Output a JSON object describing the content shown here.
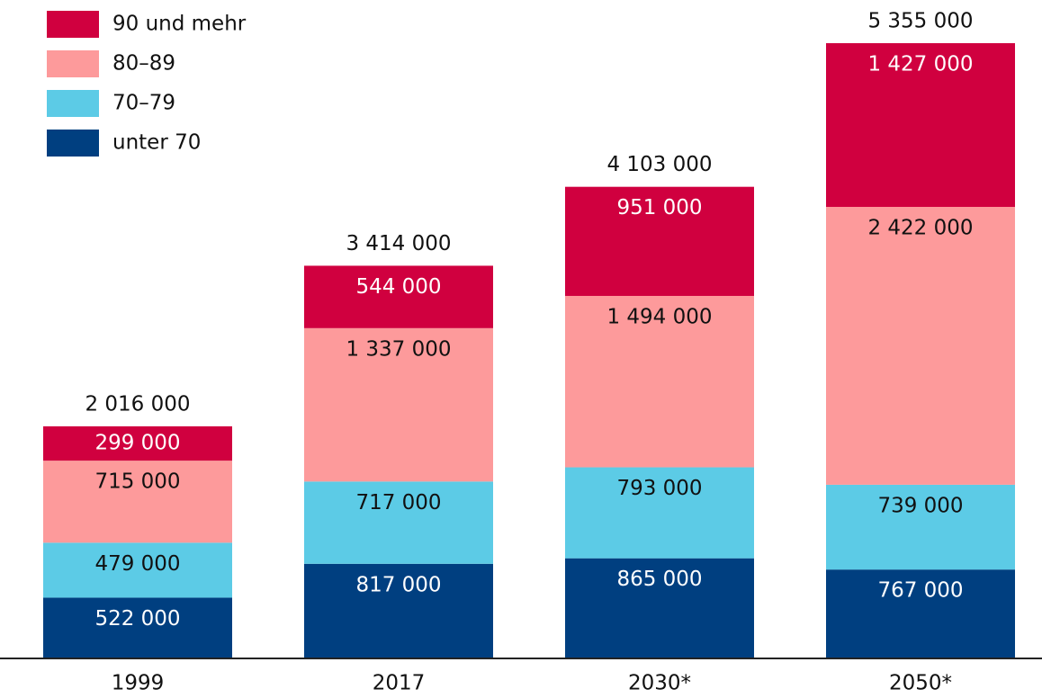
{
  "chart_data": {
    "type": "stacked_bar",
    "categories": [
      "1999",
      "2017",
      "2030*",
      "2050*"
    ],
    "series": [
      {
        "name": "unter 70",
        "color": "#003f80",
        "label_color": "#ffffff",
        "values": [
          522000,
          817000,
          865000,
          767000
        ],
        "value_labels": [
          "522 000",
          "817 000",
          "865 000",
          "767 000"
        ]
      },
      {
        "name": "70–79",
        "color": "#5ccbe6",
        "label_color": "#111111",
        "values": [
          479000,
          717000,
          793000,
          739000
        ],
        "value_labels": [
          "479 000",
          "717 000",
          "793 000",
          "739 000"
        ]
      },
      {
        "name": "80–89",
        "color": "#fd9a9b",
        "label_color": "#111111",
        "values": [
          715000,
          1337000,
          1494000,
          2422000
        ],
        "value_labels": [
          "715 000",
          "1 337 000",
          "1 494 000",
          "2 422 000"
        ]
      },
      {
        "name": "90 und mehr",
        "color": "#d0003f",
        "label_color": "#ffffff",
        "values": [
          299000,
          544000,
          951000,
          1427000
        ],
        "value_labels": [
          "299 000",
          "544 000",
          "951 000",
          "1 427 000"
        ]
      }
    ],
    "totals": [
      2016000,
      3414000,
      4103000,
      5355000
    ],
    "total_labels": [
      "2 016 000",
      "3 414 000",
      "4 103 000",
      "5 355 000"
    ],
    "legend": "top-left"
  }
}
